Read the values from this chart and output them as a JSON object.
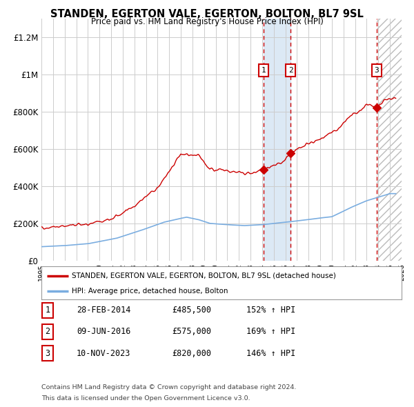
{
  "title": "STANDEN, EGERTON VALE, EGERTON, BOLTON, BL7 9SL",
  "subtitle": "Price paid vs. HM Land Registry's House Price Index (HPI)",
  "ylabel_ticks": [
    "£0",
    "£200K",
    "£400K",
    "£600K",
    "£800K",
    "£1M",
    "£1.2M"
  ],
  "ytick_values": [
    0,
    200000,
    400000,
    600000,
    800000,
    1000000,
    1200000
  ],
  "ylim": [
    0,
    1300000
  ],
  "xlim_start": 1995,
  "xlim_end": 2026,
  "sale_points": [
    {
      "date_num": 2014.12,
      "price": 485500,
      "label": "1"
    },
    {
      "date_num": 2016.44,
      "price": 575000,
      "label": "2"
    },
    {
      "date_num": 2023.86,
      "price": 820000,
      "label": "3"
    }
  ],
  "sale_dates_str": [
    "28-FEB-2014",
    "09-JUN-2016",
    "10-NOV-2023"
  ],
  "sale_prices_str": [
    "£485,500",
    "£575,000",
    "£820,000"
  ],
  "sale_hpi_pct": [
    "152% ↑ HPI",
    "169% ↑ HPI",
    "146% ↑ HPI"
  ],
  "legend_red_label": "STANDEN, EGERTON VALE, EGERTON, BOLTON, BL7 9SL (detached house)",
  "legend_blue_label": "HPI: Average price, detached house, Bolton",
  "footer_line1": "Contains HM Land Registry data © Crown copyright and database right 2024.",
  "footer_line2": "This data is licensed under the Open Government Licence v3.0.",
  "red_color": "#cc0000",
  "blue_color": "#7aade0",
  "shade12_color": "#dce9f5",
  "background_color": "#ffffff"
}
